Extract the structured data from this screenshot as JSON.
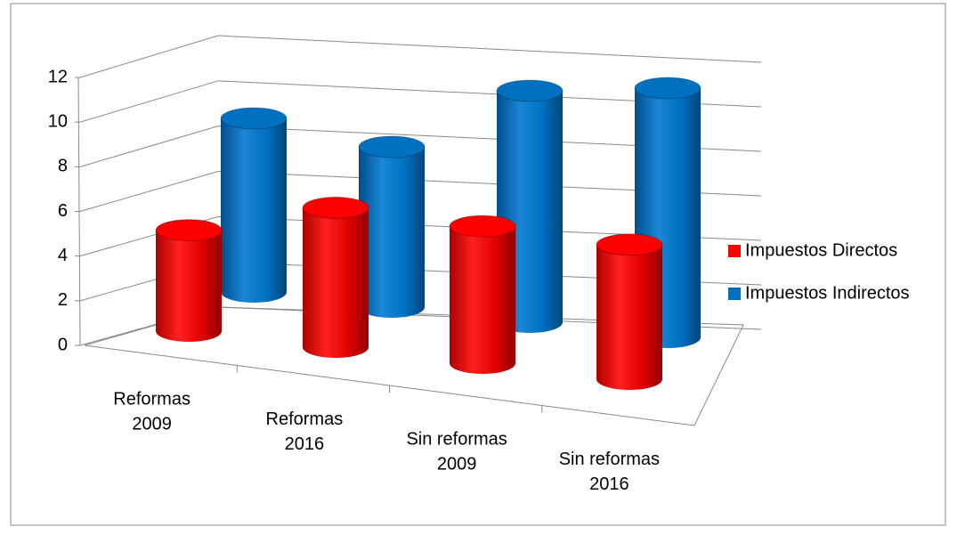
{
  "chart_data": {
    "type": "bar3d",
    "categories": [
      "Reformas 2009",
      "Reformas 2016",
      "Sin reformas 2009",
      "Sin reformas 2016"
    ],
    "series": [
      {
        "name": "Impuestos Directos",
        "color": "#ff0000",
        "values": [
          4.2,
          5.8,
          5.7,
          5.6
        ]
      },
      {
        "name": "Impuestos Indirectos",
        "color": "#0070c0",
        "values": [
          7.8,
          7.2,
          10.4,
          11.2
        ]
      }
    ],
    "ylim": [
      0,
      12
    ],
    "yticks": [
      0,
      2,
      4,
      6,
      8,
      10,
      12
    ],
    "grid": true,
    "legend": "right"
  }
}
